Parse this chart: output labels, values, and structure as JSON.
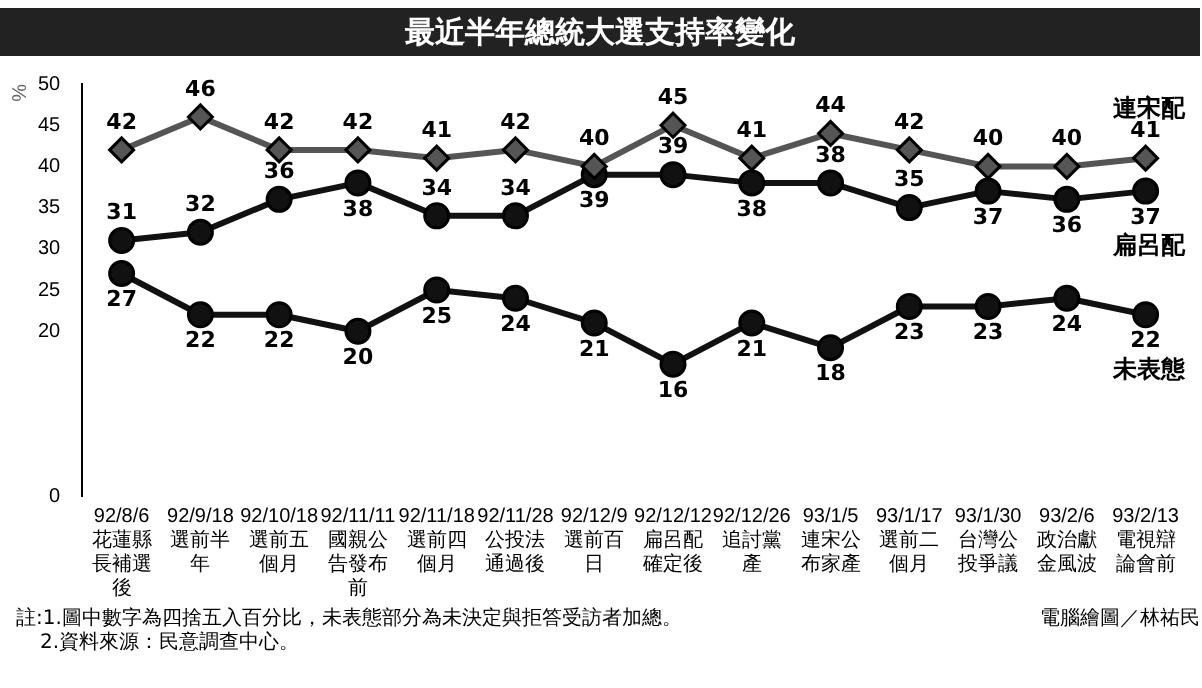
{
  "chart_data": {
    "type": "line",
    "title": "最近半年總統大選支持率變化",
    "ylabel": "%",
    "categories": [
      "92/8/6\n花蓮縣長補選後",
      "92/9/18\n選前半年",
      "92/10/18\n選前五個月",
      "92/11/11\n國親公告發布前",
      "92/11/18\n選前四個月",
      "92/11/28\n公投法通過後",
      "92/12/9\n選前百日",
      "92/12/12\n扁呂配確定後",
      "92/12/26\n追討黨產",
      "93/1/5\n連宋公布家產",
      "93/1/17\n選前二個月",
      "93/1/30\n台灣公投爭議",
      "93/2/6\n政治獻金風波",
      "93/2/13\n電視辯論會前"
    ],
    "series": [
      {
        "name": "連宋配",
        "color": "#555555",
        "marker": "diamond",
        "values": [
          42,
          46,
          42,
          42,
          41,
          42,
          40,
          45,
          41,
          44,
          42,
          40,
          40,
          41
        ]
      },
      {
        "name": "扁呂配",
        "color": "#111111",
        "marker": "circle",
        "values": [
          31,
          32,
          36,
          38,
          34,
          34,
          39,
          39,
          38,
          38,
          35,
          37,
          36,
          37
        ]
      },
      {
        "name": "未表態",
        "color": "#111111",
        "marker": "circle",
        "values": [
          27,
          22,
          22,
          20,
          25,
          24,
          21,
          16,
          21,
          18,
          23,
          23,
          24,
          22
        ]
      }
    ],
    "ylim": [
      0,
      50
    ],
    "yticks": [
      0,
      20,
      25,
      30,
      35,
      40,
      45,
      50
    ],
    "grid": false,
    "data_labels": true,
    "annotations": [
      "註:1.圖中數字為四捨五入百分比，未表態部分為未決定與拒答受訪者加總。",
      "2.資料來源：民意調查中心。",
      "電腦繪圖／林祐民"
    ]
  }
}
